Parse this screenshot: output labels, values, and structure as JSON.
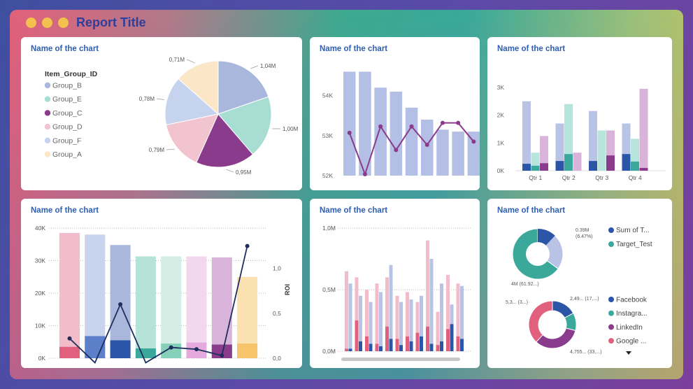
{
  "report_title": "Report Title",
  "colors": {
    "accent": "#2d3f9a",
    "dot": "#f2c14e"
  },
  "cards": {
    "c1": {
      "title": "Name of the chart"
    },
    "c2": {
      "title": "Name of the chart"
    },
    "c3": {
      "title": "Name of the chart"
    },
    "c4": {
      "title": "Name of the chart"
    },
    "c5": {
      "title": "Name of the chart"
    },
    "c6": {
      "title": "Name of the chart"
    }
  },
  "chart_data": [
    {
      "type": "pie",
      "legend_title": "Item_Group_ID",
      "slices": [
        {
          "name": "Group_B",
          "label": "1,04M",
          "value": 1.04,
          "color": "#aab7dd"
        },
        {
          "name": "Group_E",
          "label": "1,00M",
          "value": 1.0,
          "color": "#a8ddd3"
        },
        {
          "name": "Group_C",
          "label": "0,95M",
          "value": 0.95,
          "color": "#8a3b8b"
        },
        {
          "name": "Group_D",
          "label": "0,79M",
          "value": 0.79,
          "color": "#f2c4cf"
        },
        {
          "name": "Group_F",
          "label": "0,78M",
          "value": 0.78,
          "color": "#c6d3ee"
        },
        {
          "name": "Group_A",
          "label": "0,71M",
          "value": 0.71,
          "color": "#fbe7c7"
        }
      ]
    },
    {
      "type": "bar",
      "y_ticks": [
        "54K",
        "53K",
        "52K"
      ],
      "ylim": [
        52000,
        54800
      ],
      "bars": [
        54600,
        54600,
        54200,
        54100,
        53700,
        53400,
        53150,
        53100,
        53100
      ],
      "line": [
        53070,
        52020,
        53230,
        52640,
        53230,
        52770,
        53320,
        53320,
        52850
      ]
    },
    {
      "type": "bar",
      "categories": [
        "Qtr 1",
        "Qtr 2",
        "Qtr 3",
        "Qtr 4"
      ],
      "y_ticks": [
        "3K",
        "2K",
        "1K",
        "0K"
      ],
      "ylim": [
        0,
        3300
      ],
      "series": [
        {
          "values": [
            2500,
            1700,
            2150,
            1700
          ],
          "color": "#b9c3e6"
        },
        {
          "values": [
            650,
            2400,
            1450,
            1150
          ],
          "color": "#b7e4dc"
        },
        {
          "values": [
            1250,
            650,
            1450,
            2950
          ],
          "color": "#d9b3d9"
        }
      ],
      "inner": [
        {
          "values": [
            250,
            350,
            350,
            600
          ],
          "color": "#2b56a7"
        },
        {
          "values": [
            180,
            600,
            0,
            330
          ],
          "color": "#3aa89a"
        },
        {
          "values": [
            270,
            0,
            550,
            100
          ],
          "color": "#8a3b8b"
        }
      ]
    },
    {
      "type": "bar",
      "y_ticks": [
        "40K",
        "30K",
        "20K",
        "10K",
        "0K"
      ],
      "y2_ticks": [
        "1,0",
        "0,5",
        "0,0"
      ],
      "y2_label": "ROI",
      "ylim": [
        0,
        40000
      ],
      "bars": [
        {
          "total": 38500,
          "part": 3500,
          "bg": "#f2bccb",
          "fg": "#e0607e"
        },
        {
          "total": 38000,
          "part": 6800,
          "bg": "#c8d3ee",
          "fg": "#5b7fc9"
        },
        {
          "total": 34800,
          "part": 5500,
          "bg": "#aab7dd",
          "fg": "#2b56a7"
        },
        {
          "total": 31300,
          "part": 3000,
          "bg": "#b5e3d7",
          "fg": "#3aa89a"
        },
        {
          "total": 31300,
          "part": 4500,
          "bg": "#d4eee6",
          "fg": "#86d0b9"
        },
        {
          "total": 31300,
          "part": 4800,
          "bg": "#f2d8ee",
          "fg": "#e6a9dd"
        },
        {
          "total": 31000,
          "part": 4200,
          "bg": "#d9b3d9",
          "fg": "#8a3b8b"
        },
        {
          "total": 25000,
          "part": 4500,
          "bg": "#fbe0b0",
          "fg": "#f6c46a"
        }
      ],
      "roi": [
        0.22,
        -0.05,
        0.6,
        -0.05,
        0.12,
        0.1,
        0.03,
        1.25
      ]
    },
    {
      "type": "bar",
      "y_ticks": [
        "1,0M",
        "0,5M",
        "0,0M"
      ],
      "ylim": [
        0,
        1.0
      ],
      "groups": [
        [
          0.65,
          0.02,
          0.55,
          0.02
        ],
        [
          0.6,
          0.25,
          0.45,
          0.08
        ],
        [
          0.5,
          0.12,
          0.4,
          0.06
        ],
        [
          0.55,
          0.06,
          0.48,
          0.04
        ],
        [
          0.6,
          0.2,
          0.7,
          0.1
        ],
        [
          0.45,
          0.1,
          0.4,
          0.05
        ],
        [
          0.48,
          0.12,
          0.42,
          0.08
        ],
        [
          0.4,
          0.15,
          0.45,
          0.12
        ],
        [
          0.9,
          0.2,
          0.75,
          0.06
        ],
        [
          0.32,
          0.05,
          0.55,
          0.08
        ],
        [
          0.62,
          0.18,
          0.38,
          0.22
        ],
        [
          0.55,
          0.12,
          0.53,
          0.1
        ]
      ]
    },
    {
      "type": "pie",
      "donut1": {
        "legend": [
          {
            "name": "Sum of T...",
            "color": "#2b56a7"
          },
          {
            "name": "Target_Test",
            "color": "#3aa89a"
          }
        ],
        "labels": [
          "0.39M\n(6.47%)",
          "4M (61.92...)"
        ],
        "slices": [
          {
            "value": 0.35,
            "color": "#b9c3e6"
          },
          {
            "value": 0.65,
            "color": "#3aa89a"
          }
        ],
        "inner": {
          "value": 0.12,
          "color": "#2b56a7"
        }
      },
      "donut2": {
        "legend": [
          {
            "name": "Facebook",
            "color": "#2b56a7"
          },
          {
            "name": "Instagra...",
            "color": "#3aa89a"
          },
          {
            "name": "LinkedIn",
            "color": "#8a3b8b"
          },
          {
            "name": "Google ...",
            "color": "#e0607e"
          }
        ],
        "labels": [
          "2,49... (17,...)",
          "5,3... (3...)",
          "4,755... (33,...)"
        ],
        "slices": [
          {
            "value": 0.17,
            "color": "#2b56a7"
          },
          {
            "value": 0.12,
            "color": "#3aa89a"
          },
          {
            "value": 0.33,
            "color": "#8a3b8b"
          },
          {
            "value": 0.38,
            "color": "#e0607e"
          }
        ]
      }
    }
  ]
}
